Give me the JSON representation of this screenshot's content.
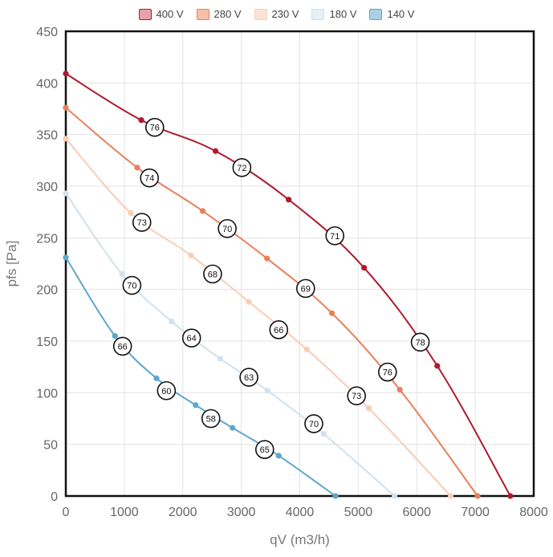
{
  "chart_data": {
    "type": "line",
    "xlabel": "qV (m3/h)",
    "ylabel": "pfs [Pa]",
    "xlim": [
      0,
      8000
    ],
    "ylim": [
      0,
      450
    ],
    "x_ticks": [
      "0",
      "1000",
      "2000",
      "3000",
      "4000",
      "5000",
      "6000",
      "7000",
      "8000"
    ],
    "y_ticks": [
      "0",
      "50",
      "100",
      "150",
      "200",
      "250",
      "300",
      "350",
      "400",
      "450"
    ],
    "grid": true,
    "legend_position": "top-center",
    "series": [
      {
        "name": "400 V",
        "color": "#b0192f",
        "fill": "#e8a0aa",
        "points": [
          [
            0,
            409
          ],
          [
            1290,
            364
          ],
          [
            2560,
            334
          ],
          [
            3810,
            287
          ],
          [
            5100,
            221
          ],
          [
            6350,
            126
          ],
          [
            7600,
            0
          ]
        ],
        "labels": [
          {
            "x": 1520,
            "y": 357,
            "text": "76"
          },
          {
            "x": 3010,
            "y": 318,
            "text": "72"
          },
          {
            "x": 4600,
            "y": 252,
            "text": "71"
          },
          {
            "x": 6060,
            "y": 149,
            "text": "78"
          }
        ]
      },
      {
        "name": "280 V",
        "color": "#e8805a",
        "fill": "#f6bfa8",
        "points": [
          [
            0,
            376
          ],
          [
            1220,
            318
          ],
          [
            2340,
            276
          ],
          [
            3440,
            230
          ],
          [
            4550,
            177
          ],
          [
            5710,
            103
          ],
          [
            7040,
            0
          ]
        ],
        "labels": [
          {
            "x": 1430,
            "y": 308,
            "text": "74"
          },
          {
            "x": 2760,
            "y": 259,
            "text": "70"
          },
          {
            "x": 4100,
            "y": 201,
            "text": "69"
          },
          {
            "x": 5500,
            "y": 120,
            "text": "76"
          }
        ]
      },
      {
        "name": "230 V",
        "color": "#f9cdb4",
        "fill": "#fde3d6",
        "points": [
          [
            0,
            346
          ],
          [
            1110,
            274
          ],
          [
            2140,
            233
          ],
          [
            3130,
            188
          ],
          [
            4120,
            142
          ],
          [
            5180,
            85
          ],
          [
            6580,
            0
          ]
        ],
        "labels": [
          {
            "x": 1300,
            "y": 265,
            "text": "73"
          },
          {
            "x": 2510,
            "y": 215,
            "text": "68"
          },
          {
            "x": 3640,
            "y": 161,
            "text": "66"
          },
          {
            "x": 4970,
            "y": 97,
            "text": "73"
          }
        ]
      },
      {
        "name": "180 V",
        "color": "#cfe2ee",
        "fill": "#e6f0f7",
        "points": [
          [
            0,
            293
          ],
          [
            960,
            215
          ],
          [
            1810,
            169
          ],
          [
            2640,
            133
          ],
          [
            3450,
            102
          ],
          [
            4410,
            60
          ],
          [
            5620,
            0
          ]
        ],
        "labels": [
          {
            "x": 1130,
            "y": 204,
            "text": "70"
          },
          {
            "x": 2150,
            "y": 153,
            "text": "64"
          },
          {
            "x": 3130,
            "y": 115,
            "text": "63"
          },
          {
            "x": 4240,
            "y": 70,
            "text": "70"
          }
        ]
      },
      {
        "name": "140 V",
        "color": "#5ea7cc",
        "fill": "#a9d0e6",
        "points": [
          [
            0,
            231
          ],
          [
            840,
            155
          ],
          [
            1550,
            114
          ],
          [
            2220,
            88
          ],
          [
            2850,
            66
          ],
          [
            3640,
            39
          ],
          [
            4610,
            0
          ]
        ],
        "labels": [
          {
            "x": 970,
            "y": 145,
            "text": "66"
          },
          {
            "x": 1720,
            "y": 102,
            "text": "60"
          },
          {
            "x": 2480,
            "y": 75,
            "text": "58"
          },
          {
            "x": 3400,
            "y": 45,
            "text": "65"
          }
        ]
      }
    ]
  }
}
